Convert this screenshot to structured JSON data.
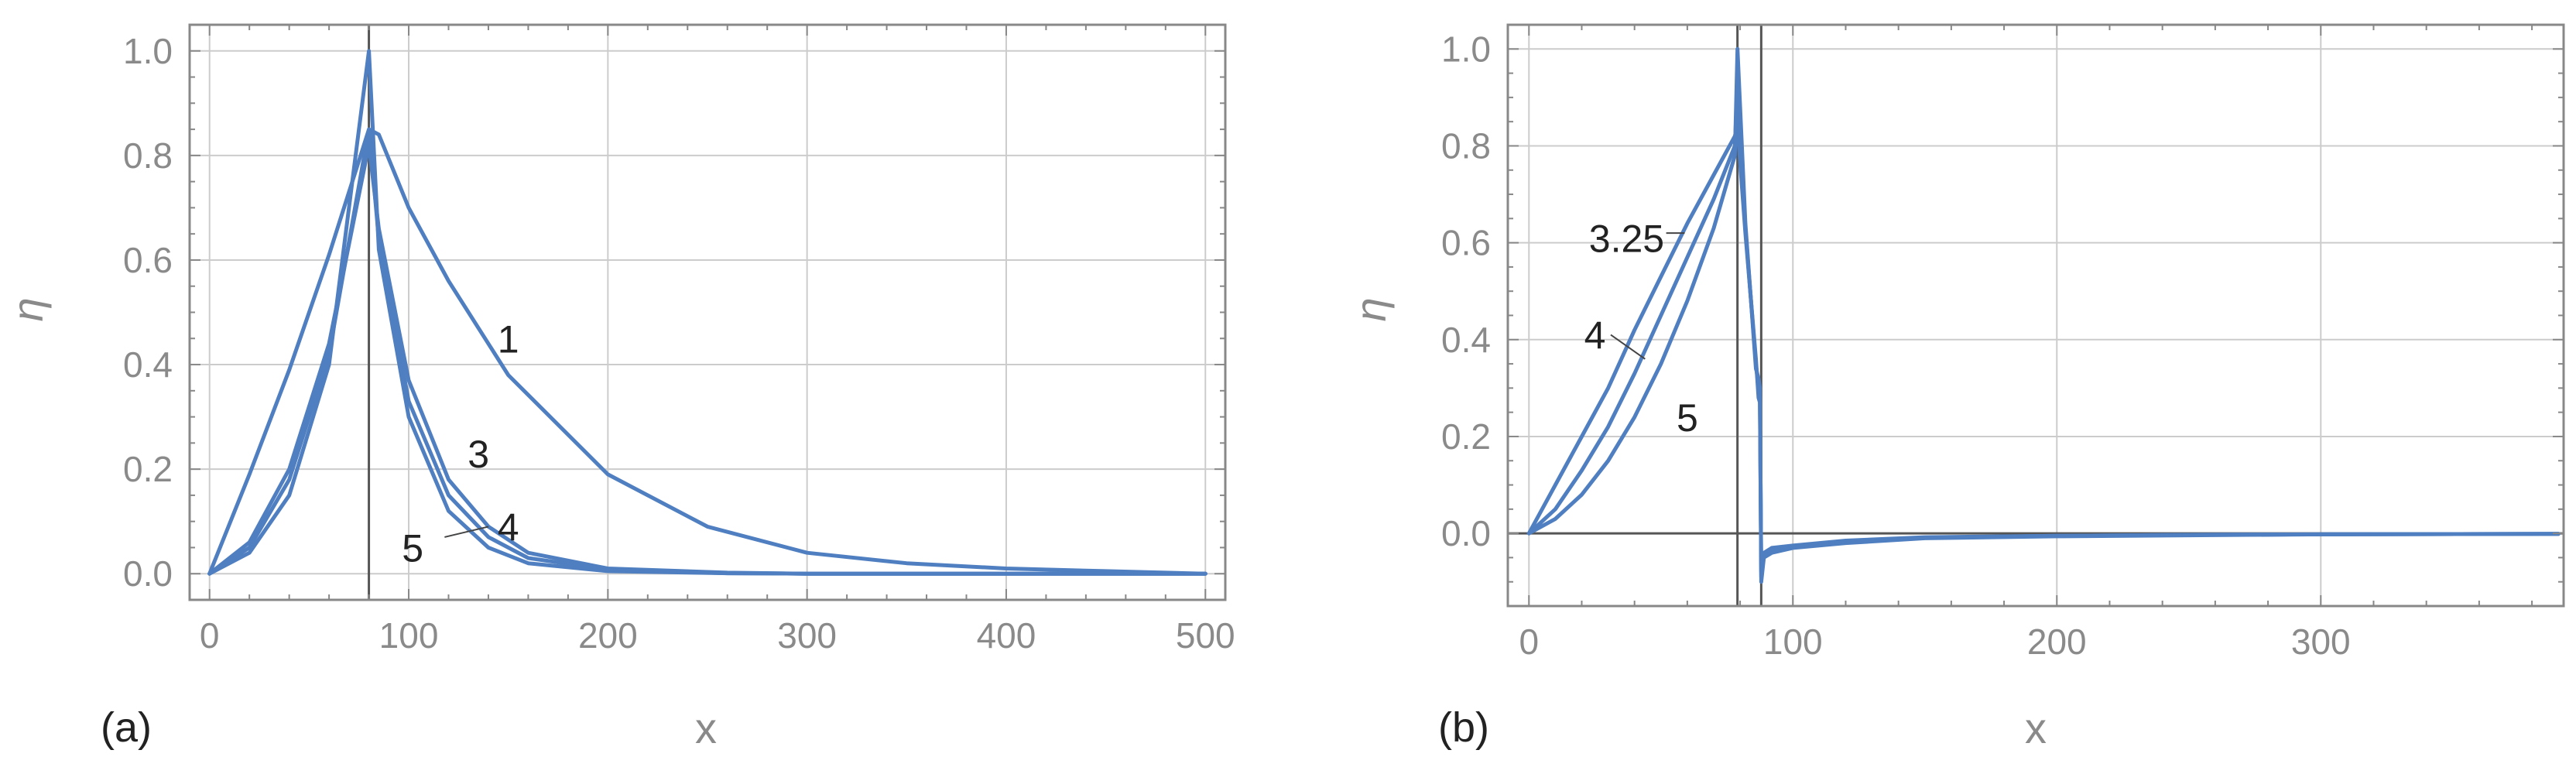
{
  "figure": {
    "line_color": "#4f7fc0",
    "frame_color": "#888888",
    "grid_color": "#cccccc",
    "tick_label_color": "#8a8a8a",
    "annotation_color": "#222222"
  },
  "chart_data": [
    {
      "type": "line",
      "panel_label": "(a)",
      "xlabel": "x",
      "ylabel": "η",
      "xlim": [
        -10,
        510
      ],
      "ylim": [
        -0.05,
        1.05
      ],
      "grid": true,
      "x_ticks": [
        0,
        100,
        200,
        300,
        400,
        500
      ],
      "x_tick_labels": [
        "0",
        "100",
        "200",
        "300",
        "400",
        "500"
      ],
      "y_ticks": [
        0.0,
        0.2,
        0.4,
        0.6,
        0.8,
        1.0
      ],
      "y_tick_labels": [
        "0.0",
        "0.2",
        "0.4",
        "0.6",
        "0.8",
        "1.0"
      ],
      "vlines": [
        80
      ],
      "series": [
        {
          "name": "1",
          "x": [
            0,
            20,
            40,
            60,
            80,
            85,
            100,
            120,
            150,
            200,
            250,
            300,
            350,
            400,
            450,
            500
          ],
          "y": [
            0,
            0.19,
            0.39,
            0.61,
            0.85,
            0.84,
            0.7,
            0.56,
            0.38,
            0.19,
            0.09,
            0.04,
            0.02,
            0.01,
            0.005,
            0
          ]
        },
        {
          "name": "3",
          "x": [
            0,
            20,
            40,
            60,
            80,
            85,
            100,
            120,
            140,
            160,
            200,
            260,
            300,
            500
          ],
          "y": [
            0,
            0.06,
            0.2,
            0.44,
            0.82,
            0.66,
            0.37,
            0.18,
            0.09,
            0.04,
            0.01,
            0.002,
            0,
            0
          ]
        },
        {
          "name": "4",
          "x": [
            0,
            20,
            40,
            60,
            80,
            85,
            100,
            120,
            140,
            160,
            200,
            260,
            300,
            500
          ],
          "y": [
            0,
            0.05,
            0.18,
            0.42,
            0.85,
            0.64,
            0.33,
            0.15,
            0.07,
            0.03,
            0.008,
            0.001,
            0,
            0
          ]
        },
        {
          "name": "5",
          "x": [
            0,
            20,
            40,
            60,
            80,
            85,
            100,
            120,
            140,
            160,
            200,
            260,
            300,
            500
          ],
          "y": [
            0,
            0.04,
            0.15,
            0.4,
            1.0,
            0.62,
            0.3,
            0.12,
            0.05,
            0.02,
            0.005,
            0.001,
            0,
            0
          ]
        }
      ],
      "annotations": [
        {
          "text": "1",
          "x": 150,
          "y": 0.45
        },
        {
          "text": "3",
          "x": 135,
          "y": 0.23
        },
        {
          "text": "4",
          "x": 150,
          "y": 0.09
        },
        {
          "text": "5",
          "x": 102,
          "y": 0.05
        }
      ],
      "leader_lines": [
        {
          "x1": 140,
          "y1": 0.09,
          "x2": 118,
          "y2": 0.07
        }
      ]
    },
    {
      "type": "line",
      "panel_label": "(b)",
      "xlabel": "x",
      "ylabel": "η",
      "xlim": [
        -8,
        392
      ],
      "ylim": [
        -0.15,
        1.05
      ],
      "grid": true,
      "x_ticks": [
        0,
        100,
        200,
        300
      ],
      "x_tick_labels": [
        "0",
        "100",
        "200",
        "300"
      ],
      "y_ticks": [
        0.0,
        0.2,
        0.4,
        0.6,
        0.8,
        1.0
      ],
      "y_tick_labels": [
        "0.0",
        "0.2",
        "0.4",
        "0.6",
        "0.8",
        "1.0"
      ],
      "vlines": [
        79,
        88
      ],
      "hlines": [
        0
      ],
      "series": [
        {
          "name": "3.25",
          "x": [
            0,
            10,
            20,
            30,
            40,
            50,
            60,
            70,
            78,
            79,
            82,
            86,
            87,
            87.5,
            88,
            89,
            92,
            100,
            120,
            150,
            200,
            250,
            300,
            390
          ],
          "y": [
            0,
            0.1,
            0.2,
            0.3,
            0.42,
            0.53,
            0.64,
            0.74,
            0.82,
            0.84,
            0.62,
            0.36,
            0.28,
            0.27,
            -0.08,
            -0.04,
            -0.03,
            -0.025,
            -0.015,
            -0.008,
            -0.005,
            -0.003,
            -0.002,
            -0.001
          ]
        },
        {
          "name": "4",
          "x": [
            0,
            10,
            20,
            30,
            40,
            50,
            60,
            70,
            78,
            79,
            82,
            86,
            87,
            87.5,
            88,
            89,
            92,
            100,
            120,
            150,
            200,
            250,
            300,
            390
          ],
          "y": [
            0,
            0.05,
            0.13,
            0.22,
            0.33,
            0.45,
            0.57,
            0.69,
            0.8,
            0.92,
            0.63,
            0.35,
            0.3,
            0.28,
            -0.09,
            -0.045,
            -0.035,
            -0.027,
            -0.017,
            -0.009,
            -0.005,
            -0.003,
            -0.002,
            -0.001
          ]
        },
        {
          "name": "5",
          "x": [
            0,
            10,
            20,
            30,
            40,
            50,
            60,
            70,
            78,
            79,
            82,
            86,
            87,
            87.5,
            88,
            89,
            92,
            100,
            120,
            150,
            200,
            250,
            300,
            390
          ],
          "y": [
            0,
            0.03,
            0.08,
            0.15,
            0.24,
            0.35,
            0.48,
            0.63,
            0.78,
            1.0,
            0.64,
            0.34,
            0.32,
            0.3,
            -0.1,
            -0.05,
            -0.04,
            -0.03,
            -0.02,
            -0.01,
            -0.006,
            -0.004,
            -0.002,
            -0.001
          ]
        }
      ],
      "annotations": [
        {
          "text": "3.25",
          "x": 37,
          "y": 0.61
        },
        {
          "text": "4",
          "x": 25,
          "y": 0.41
        },
        {
          "text": "5",
          "x": 60,
          "y": 0.24
        }
      ],
      "leader_lines": [
        {
          "x1": 31,
          "y1": 0.41,
          "x2": 44,
          "y2": 0.36
        },
        {
          "x1": 52,
          "y1": 0.62,
          "x2": 59,
          "y2": 0.62
        }
      ]
    }
  ]
}
